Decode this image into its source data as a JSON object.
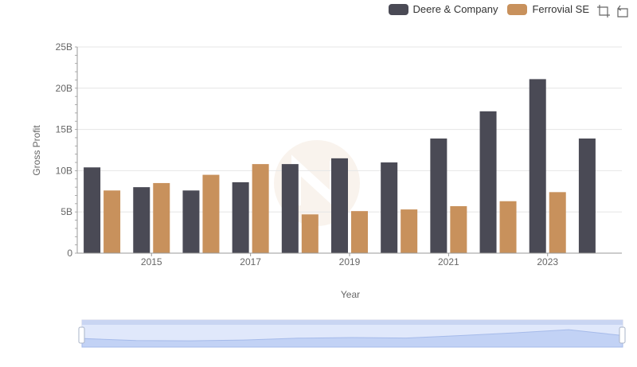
{
  "legend": {
    "items": [
      {
        "label": "Deere & Company",
        "color": "#4a4a55"
      },
      {
        "label": "Ferrovial SE",
        "color": "#c8915c"
      }
    ]
  },
  "toolbox": {
    "icons": [
      "zoom-icon",
      "restore-icon"
    ]
  },
  "chart_data": {
    "type": "bar",
    "xlabel": "Year",
    "ylabel": "Gross Profit",
    "ylim": [
      0,
      25
    ],
    "y_ticks": [
      "0",
      "5B",
      "10B",
      "15B",
      "20B",
      "25B"
    ],
    "x_tick_labels": [
      "2015",
      "2017",
      "2019",
      "2021",
      "2023"
    ],
    "categories": [
      "2014",
      "2015",
      "2016",
      "2017",
      "2018",
      "2019",
      "2020",
      "2021",
      "2022",
      "2023",
      "2024"
    ],
    "series": [
      {
        "name": "Deere & Company",
        "color": "#4a4a55",
        "values": [
          10.4,
          8.0,
          7.6,
          8.6,
          10.8,
          11.5,
          11.0,
          13.9,
          17.2,
          21.1,
          13.9
        ]
      },
      {
        "name": "Ferrovial SE",
        "color": "#c8915c",
        "values": [
          7.6,
          8.5,
          9.5,
          10.8,
          4.7,
          5.1,
          5.3,
          5.7,
          6.3,
          7.4,
          null
        ]
      }
    ],
    "grid": true,
    "legend_position": "top-right"
  }
}
